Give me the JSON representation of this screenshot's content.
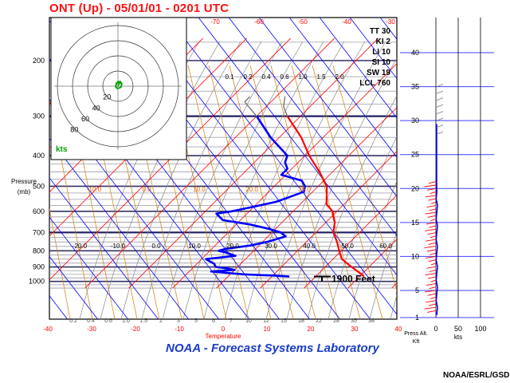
{
  "title": "ONT (Up) - 05/01/01 - 0201 UTC",
  "footer": "NOAA - Forecast Systems Laboratory",
  "credit": "NOAA/ESRL/GSD",
  "colors": {
    "temperature": "#ff0000",
    "dewpoint": "#0000ff",
    "isobar_major": "#333366",
    "isobar_minor": "#9999aa",
    "skewed_isotherm": "#ff0000",
    "dry_adiabat": "#0000ff",
    "moist_adiabat": "#888888",
    "mixing_ratio": "#d08000",
    "height_line": "#4040ff"
  },
  "chart_data": {
    "type": "line",
    "title": "ONT (Up) - 05/01/01 - 0201 UTC",
    "xlabel": "Temperature",
    "ylabel": "Pressure (mb)",
    "pressure_ticks": [
      200,
      300,
      400,
      500,
      600,
      700,
      800,
      900,
      1000
    ],
    "temperature_ticks": [
      -40,
      -30,
      -20,
      -10,
      0,
      10,
      20,
      30,
      40
    ],
    "skewed_isotherm_labels": [
      "-70",
      "-60",
      "-50",
      "-40",
      "-30"
    ],
    "theta_labels": [
      "-10.0",
      "0.0",
      "10.0",
      "20.0",
      "30.0"
    ],
    "theta_e_labels": [
      "-20.0",
      "-10.0",
      "0.0",
      "10.0",
      "20.0",
      "30.0",
      "40.0",
      "50.0",
      "60.0"
    ],
    "mixing_ratio_upper_labels": [
      "0.1",
      "0.2",
      "0.4",
      "0.6",
      "1.0",
      "1.5",
      "2.0"
    ],
    "mixing_ratio_lower_labels": [
      "0.2",
      "0.4",
      "0.6",
      "1.0",
      "1.5",
      "2",
      "3",
      "5",
      "6",
      "7",
      "10",
      "12",
      "15",
      "18",
      "22",
      "28",
      "35",
      "38"
    ],
    "indices": [
      {
        "label": "TT",
        "value": "30"
      },
      {
        "label": "KI",
        "value": "2"
      },
      {
        "label": "LI",
        "value": "10"
      },
      {
        "label": "SI",
        "value": "10"
      },
      {
        "label": "SW",
        "value": "19"
      },
      {
        "label": "LCL",
        "value": "760"
      }
    ],
    "series": [
      {
        "name": "Temperature",
        "points": [
          [
            965,
            31
          ],
          [
            950,
            30
          ],
          [
            900,
            26
          ],
          [
            850,
            22
          ],
          [
            800,
            19.5
          ],
          [
            750,
            17
          ],
          [
            700,
            14
          ],
          [
            650,
            12
          ],
          [
            600,
            9
          ],
          [
            570,
            6
          ],
          [
            500,
            2
          ],
          [
            450,
            -3
          ],
          [
            400,
            -9
          ],
          [
            350,
            -15
          ],
          [
            300,
            -23
          ],
          [
            280,
            -26
          ],
          [
            270,
            -27
          ],
          [
            260,
            -28
          ]
        ]
      },
      {
        "name": "Dewpoint",
        "points": [
          [
            965,
            14
          ],
          [
            958,
            10
          ],
          [
            950,
            3
          ],
          [
            940,
            -1
          ],
          [
            930,
            -5
          ],
          [
            920,
            0
          ],
          [
            910,
            -2
          ],
          [
            900,
            -5
          ],
          [
            880,
            -6
          ],
          [
            860,
            -8
          ],
          [
            850,
            -9
          ],
          [
            830,
            -3
          ],
          [
            810,
            -6
          ],
          [
            800,
            -8
          ],
          [
            790,
            -7
          ],
          [
            770,
            -2
          ],
          [
            750,
            1
          ],
          [
            720,
            4
          ],
          [
            700,
            2
          ],
          [
            680,
            -2
          ],
          [
            660,
            -7
          ],
          [
            640,
            -14
          ],
          [
            620,
            -16
          ],
          [
            610,
            -17
          ],
          [
            600,
            -14
          ],
          [
            580,
            -10
          ],
          [
            560,
            -6
          ],
          [
            540,
            -4
          ],
          [
            520,
            -2
          ],
          [
            500,
            -3
          ],
          [
            480,
            -5
          ],
          [
            460,
            -11
          ],
          [
            440,
            -11
          ],
          [
            420,
            -13
          ],
          [
            400,
            -14
          ],
          [
            350,
            -22
          ],
          [
            300,
            -30
          ],
          [
            280,
            -34
          ],
          [
            270,
            -36
          ],
          [
            260,
            -36
          ]
        ]
      }
    ],
    "surface_marker_label": "1900 Feet",
    "hodograph": {
      "rings": [
        "20",
        "40",
        "60",
        "80"
      ],
      "unit": "kts"
    },
    "wind_profile": {
      "height_ticks": [
        "1",
        "5",
        "10",
        "15",
        "20",
        "25",
        "30",
        "35",
        "40"
      ],
      "speed_ticks": [
        "0",
        "50",
        "100"
      ],
      "xlabel": "Press Alt. Kft",
      "speed_unit": "kts"
    }
  }
}
